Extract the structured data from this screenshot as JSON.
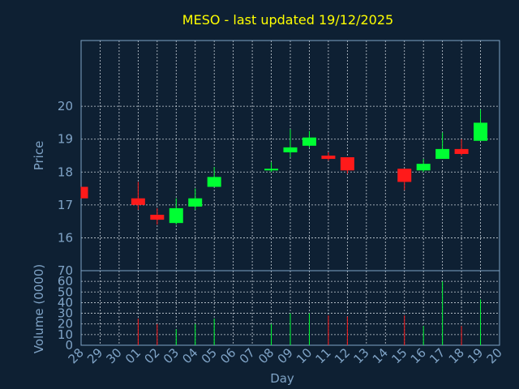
{
  "chart_data": {
    "type": "candlestick",
    "title": "MESO - last updated 19/12/2025",
    "xlabel": "Day",
    "ylabel_price": "Price",
    "ylabel_volume": "Volume (0000)",
    "x_ticks": [
      "28",
      "29",
      "30",
      "01",
      "02",
      "03",
      "04",
      "05",
      "06",
      "07",
      "08",
      "09",
      "10",
      "11",
      "12",
      "13",
      "14",
      "15",
      "16",
      "17",
      "18",
      "19",
      "20"
    ],
    "price_ylim": [
      15,
      22
    ],
    "price_yticks": [
      16,
      17,
      18,
      19,
      20
    ],
    "volume_ylim": [
      0,
      70
    ],
    "volume_yticks": [
      0,
      10,
      20,
      30,
      40,
      50,
      60,
      70
    ],
    "grid": true,
    "colors": {
      "up": "#00ff33",
      "down": "#ff1a1a",
      "background": "#0e2033",
      "title": "#ffff00",
      "axis": "#7fa3c6"
    },
    "candles": [
      {
        "day": "28",
        "open": 17.55,
        "close": 17.2,
        "high": 17.55,
        "low": 17.2,
        "volume": 0
      },
      {
        "day": "01",
        "open": 17.2,
        "close": 17.0,
        "high": 17.7,
        "low": 16.85,
        "volume": 25
      },
      {
        "day": "02",
        "open": 16.7,
        "close": 16.55,
        "high": 16.9,
        "low": 16.4,
        "volume": 20
      },
      {
        "day": "03",
        "open": 16.45,
        "close": 16.9,
        "high": 17.2,
        "low": 16.4,
        "volume": 15
      },
      {
        "day": "04",
        "open": 16.95,
        "close": 17.2,
        "high": 17.5,
        "low": 16.85,
        "volume": 20
      },
      {
        "day": "05",
        "open": 17.55,
        "close": 17.85,
        "high": 18.15,
        "low": 17.55,
        "volume": 25
      },
      {
        "day": "08",
        "open": 18.05,
        "close": 18.1,
        "high": 18.3,
        "low": 18.0,
        "volume": 20
      },
      {
        "day": "09",
        "open": 18.6,
        "close": 18.75,
        "high": 19.3,
        "low": 18.45,
        "volume": 30
      },
      {
        "day": "10",
        "open": 18.8,
        "close": 19.05,
        "high": 19.25,
        "low": 18.75,
        "volume": 30
      },
      {
        "day": "11",
        "open": 18.5,
        "close": 18.4,
        "high": 18.6,
        "low": 18.35,
        "volume": 28
      },
      {
        "day": "12",
        "open": 18.45,
        "close": 18.05,
        "high": 18.45,
        "low": 17.95,
        "volume": 27
      },
      {
        "day": "15",
        "open": 18.1,
        "close": 17.7,
        "high": 18.1,
        "low": 17.45,
        "volume": 28
      },
      {
        "day": "16",
        "open": 18.05,
        "close": 18.25,
        "high": 18.4,
        "low": 18.0,
        "volume": 18
      },
      {
        "day": "17",
        "open": 18.4,
        "close": 18.7,
        "high": 19.2,
        "low": 18.4,
        "volume": 60
      },
      {
        "day": "18",
        "open": 18.7,
        "close": 18.55,
        "high": 19.0,
        "low": 18.5,
        "volume": 18
      },
      {
        "day": "19",
        "open": 18.95,
        "close": 19.5,
        "high": 19.9,
        "low": 18.95,
        "volume": 43
      }
    ]
  }
}
